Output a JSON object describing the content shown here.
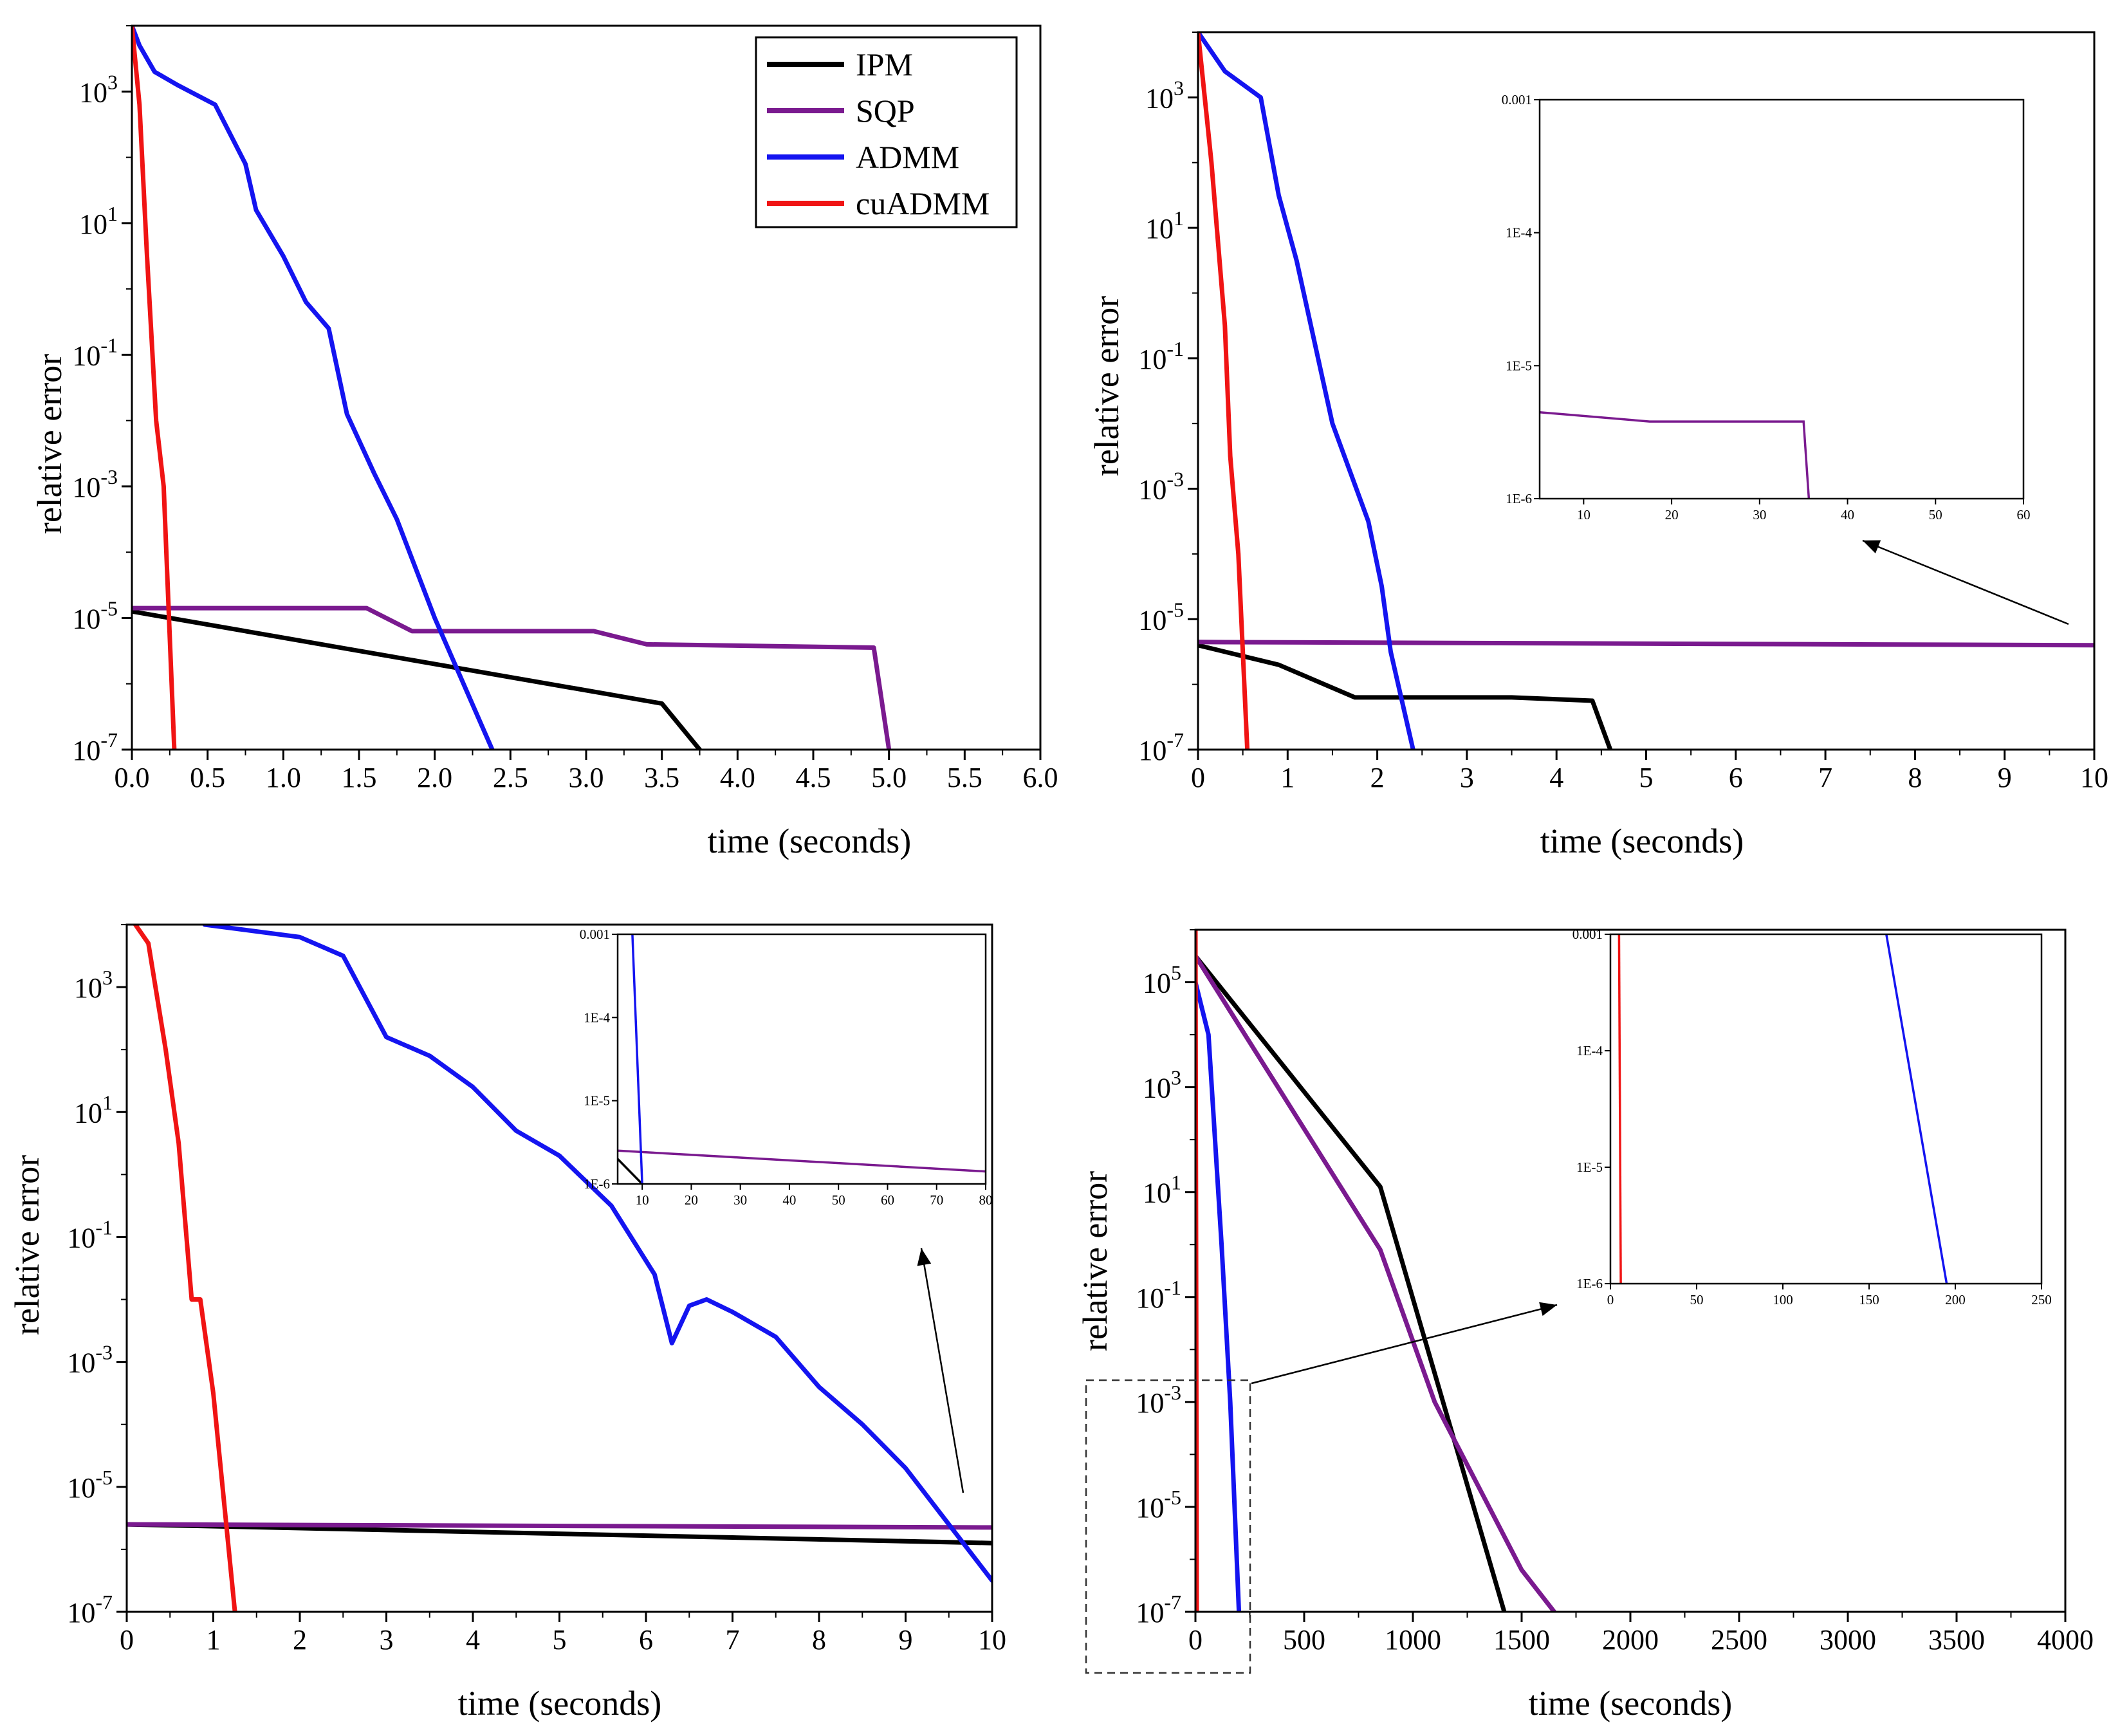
{
  "colors": {
    "IPM": "#000000",
    "SQP": "#7a1a8f",
    "ADMM": "#1414f0",
    "cuADMM": "#f01414"
  },
  "legend": [
    "IPM",
    "SQP",
    "ADMM",
    "cuADMM"
  ],
  "chart_data": [
    {
      "type": "line",
      "panel": "top-left",
      "xlabel": "time (seconds)",
      "ylabel": "relative error",
      "xlim": [
        0,
        6
      ],
      "ylim_log10": [
        -7,
        4
      ],
      "yscale": "log",
      "xticks": [
        0.0,
        0.5,
        1.0,
        1.5,
        2.0,
        2.5,
        3.0,
        3.5,
        4.0,
        4.5,
        5.0,
        5.5,
        6.0
      ],
      "xtick_labels": [
        "0.0",
        "0.5",
        "1.0",
        "1.5",
        "2.0",
        "2.5",
        "3.0",
        "3.5",
        "4.0",
        "4.5",
        "5.0",
        "5.5",
        "6.0"
      ],
      "yticks_log10": [
        -7,
        -5,
        -3,
        -1,
        1,
        3
      ],
      "legend_position": "top-right",
      "series": [
        {
          "name": "IPM",
          "x": [
            0,
            3.5,
            3.75
          ],
          "log10_y": [
            -4.9,
            -6.3,
            -7
          ]
        },
        {
          "name": "SQP",
          "x": [
            0,
            1.55,
            1.85,
            3.05,
            3.4,
            4.9,
            5.0
          ],
          "log10_y": [
            -4.85,
            -4.85,
            -5.2,
            -5.2,
            -5.4,
            -5.45,
            -7
          ]
        },
        {
          "name": "ADMM",
          "x": [
            0,
            0.05,
            0.15,
            0.3,
            0.55,
            0.75,
            0.82,
            1.0,
            1.15,
            1.3,
            1.42,
            1.6,
            1.75,
            2.0,
            2.38
          ],
          "log10_y": [
            4,
            3.7,
            3.3,
            3.1,
            2.8,
            1.9,
            1.2,
            0.5,
            -0.2,
            -0.6,
            -1.9,
            -2.8,
            -3.5,
            -5.0,
            -7
          ]
        },
        {
          "name": "cuADMM",
          "x": [
            0,
            0.05,
            0.1,
            0.16,
            0.21,
            0.28
          ],
          "log10_y": [
            4,
            2.8,
            0.5,
            -2.0,
            -3.0,
            -7
          ]
        }
      ]
    },
    {
      "type": "line",
      "panel": "top-right",
      "xlabel": "time (seconds)",
      "ylabel": "relative error",
      "xlim": [
        0,
        10
      ],
      "ylim_log10": [
        -7,
        4
      ],
      "yscale": "log",
      "xticks": [
        0,
        1,
        2,
        3,
        4,
        5,
        6,
        7,
        8,
        9,
        10
      ],
      "xtick_labels": [
        "0",
        "1",
        "2",
        "3",
        "4",
        "5",
        "6",
        "7",
        "8",
        "9",
        "10"
      ],
      "yticks_log10": [
        -7,
        -5,
        -3,
        -1,
        1,
        3
      ],
      "series": [
        {
          "name": "IPM",
          "x": [
            0,
            0.9,
            1.75,
            3.5,
            4.4,
            4.6
          ],
          "log10_y": [
            -5.4,
            -5.7,
            -6.2,
            -6.2,
            -6.25,
            -7
          ]
        },
        {
          "name": "SQP",
          "x": [
            0,
            10
          ],
          "log10_y": [
            -5.35,
            -5.4
          ]
        },
        {
          "name": "ADMM",
          "x": [
            0,
            0.3,
            0.7,
            0.9,
            1.1,
            1.5,
            1.9,
            2.05,
            2.15,
            2.4
          ],
          "log10_y": [
            4,
            3.4,
            3.0,
            1.5,
            0.5,
            -2.0,
            -3.5,
            -4.5,
            -5.5,
            -7
          ]
        },
        {
          "name": "cuADMM",
          "x": [
            0,
            0.15,
            0.3,
            0.36,
            0.45,
            0.55
          ],
          "log10_y": [
            4,
            2.0,
            -0.5,
            -2.5,
            -4.0,
            -7
          ]
        }
      ],
      "inset": {
        "xlim": [
          5,
          60
        ],
        "ylim_log10": [
          -6,
          -3
        ],
        "xticks": [
          10,
          20,
          30,
          40,
          50,
          60
        ],
        "ytick_labels": [
          "1E-6",
          "1E-5",
          "1E-4",
          "0.001"
        ],
        "series": [
          {
            "name": "SQP",
            "x": [
              5,
              17.5,
              35,
              35.6
            ],
            "log10_y": [
              -5.35,
              -5.42,
              -5.42,
              -6
            ]
          }
        ]
      }
    },
    {
      "type": "line",
      "panel": "bottom-left",
      "xlabel": "time (seconds)",
      "ylabel": "relative error",
      "xlim": [
        0,
        10
      ],
      "ylim_log10": [
        -7,
        4
      ],
      "yscale": "log",
      "xticks": [
        0,
        1,
        2,
        3,
        4,
        5,
        6,
        7,
        8,
        9,
        10
      ],
      "xtick_labels": [
        "0",
        "1",
        "2",
        "3",
        "4",
        "5",
        "6",
        "7",
        "8",
        "9",
        "10"
      ],
      "yticks_log10": [
        -7,
        -5,
        -3,
        -1,
        1,
        3
      ],
      "series": [
        {
          "name": "IPM",
          "x": [
            0,
            10
          ],
          "log10_y": [
            -5.6,
            -5.9
          ]
        },
        {
          "name": "SQP",
          "x": [
            0,
            10
          ],
          "log10_y": [
            -5.6,
            -5.65
          ]
        },
        {
          "name": "ADMM",
          "x": [
            0.9,
            2.0,
            2.5,
            3.0,
            3.5,
            4.0,
            4.5,
            5.0,
            5.6,
            6.1,
            6.3,
            6.5,
            6.7,
            7.0,
            7.5,
            8.0,
            8.5,
            9.0,
            10.0
          ],
          "log10_y": [
            4,
            3.8,
            3.5,
            2.2,
            1.9,
            1.4,
            0.7,
            0.3,
            -0.5,
            -1.6,
            -2.7,
            -2.1,
            -2.0,
            -2.2,
            -2.6,
            -3.4,
            -4.0,
            -4.7,
            -6.5
          ]
        },
        {
          "name": "cuADMM",
          "x": [
            0.1,
            0.25,
            0.45,
            0.6,
            0.75,
            0.85,
            1.0,
            1.25
          ],
          "log10_y": [
            4,
            3.7,
            2.0,
            0.5,
            -2.0,
            -2.0,
            -3.5,
            -7
          ]
        }
      ],
      "inset": {
        "xlim": [
          5,
          80
        ],
        "ylim_log10": [
          -6,
          -3
        ],
        "xticks": [
          10,
          20,
          30,
          40,
          50,
          60,
          70,
          80
        ],
        "ytick_labels": [
          "1E-6",
          "1E-5",
          "1E-4",
          "0.001"
        ],
        "series": [
          {
            "name": "IPM",
            "x": [
              5,
              10
            ],
            "log10_y": [
              -5.7,
              -6
            ]
          },
          {
            "name": "SQP",
            "x": [
              5,
              80
            ],
            "log10_y": [
              -5.6,
              -5.85
            ]
          },
          {
            "name": "ADMM",
            "x": [
              8,
              10
            ],
            "log10_y": [
              -3,
              -6
            ]
          }
        ]
      }
    },
    {
      "type": "line",
      "panel": "bottom-right",
      "xlabel": "time (seconds)",
      "ylabel": "relative error",
      "xlim": [
        0,
        4000
      ],
      "ylim_log10": [
        -7,
        6
      ],
      "yscale": "log",
      "xticks": [
        0,
        500,
        1000,
        1500,
        2000,
        2500,
        3000,
        3500,
        4000
      ],
      "xtick_labels": [
        "0",
        "500",
        "1000",
        "1500",
        "2000",
        "2500",
        "3000",
        "3500",
        "4000"
      ],
      "yticks_log10": [
        -7,
        -5,
        -3,
        -1,
        1,
        3,
        5
      ],
      "series": [
        {
          "name": "IPM",
          "x": [
            0,
            850,
            1420
          ],
          "log10_y": [
            5.5,
            1.1,
            -7
          ]
        },
        {
          "name": "SQP",
          "x": [
            0,
            850,
            1100,
            1500,
            1650
          ],
          "log10_y": [
            5.5,
            -0.1,
            -3.0,
            -6.2,
            -7
          ]
        },
        {
          "name": "ADMM",
          "x": [
            0,
            60,
            120,
            160,
            200
          ],
          "log10_y": [
            5.0,
            4.0,
            0,
            -3.0,
            -7
          ]
        },
        {
          "name": "cuADMM",
          "x": [
            0,
            3,
            6
          ],
          "log10_y": [
            6,
            0,
            -7
          ]
        }
      ],
      "inset": {
        "xlim": [
          0,
          250
        ],
        "ylim_log10": [
          -6,
          -3
        ],
        "xticks": [
          0,
          50,
          100,
          150,
          200,
          250
        ],
        "ytick_labels": [
          "1E-6",
          "1E-5",
          "1E-4",
          "0.001"
        ],
        "series": [
          {
            "name": "ADMM",
            "x": [
              160,
              195
            ],
            "log10_y": [
              -3,
              -6
            ]
          },
          {
            "name": "cuADMM",
            "x": [
              5,
              6
            ],
            "log10_y": [
              -3,
              -6
            ]
          }
        ]
      }
    }
  ]
}
